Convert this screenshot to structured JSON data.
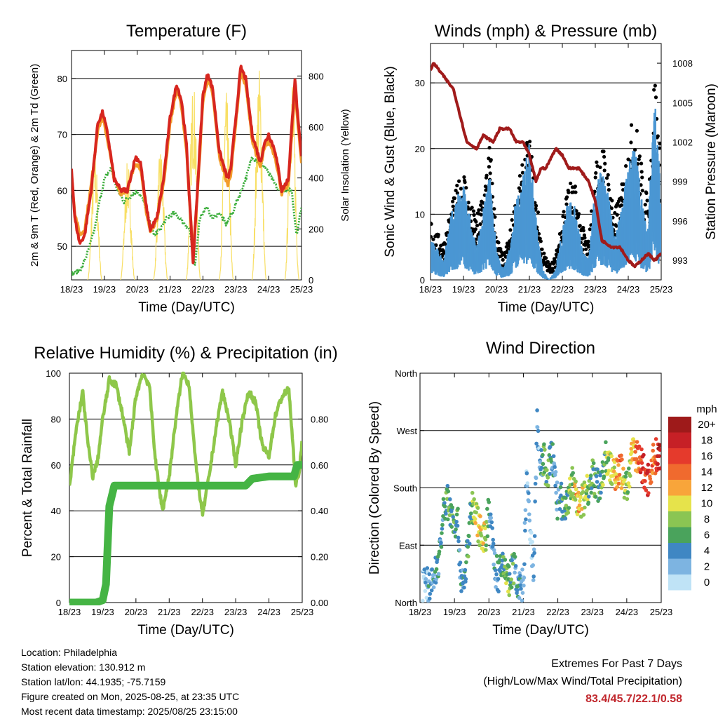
{
  "colors": {
    "t2m": "#d7261f",
    "t9m": "#f39c2a",
    "td": "#3cae3c",
    "solar": "#f8df65",
    "wind": "#4b97d3",
    "gust": "#000000",
    "pressure": "#a01b1b",
    "rh": "#8ec74a",
    "precip": "#45b444"
  },
  "chart_data": [
    {
      "id": "temperature",
      "type": "line",
      "title": "Temperature (F)",
      "xlabel": "Time (Day/UTC)",
      "ylabel": "2m & 9m T (Red, Orange) & 2m Td (Green)",
      "ylabel_right": "Solar Insolation (Yellow)",
      "xticks": [
        "18/23",
        "19/23",
        "20/23",
        "21/23",
        "22/23",
        "23/23",
        "24/23",
        "25/23"
      ],
      "xlim": [
        0,
        7
      ],
      "ylim": [
        44,
        85
      ],
      "ylim_right": [
        0,
        900
      ],
      "yticks": [
        50,
        60,
        70,
        80
      ],
      "yticks_right": [
        0,
        200,
        400,
        600,
        800
      ],
      "series": [
        {
          "key": "t2m",
          "x": [
            0,
            0.1,
            0.25,
            0.4,
            0.6,
            0.8,
            0.95,
            1.1,
            1.3,
            1.5,
            1.7,
            1.95,
            2.1,
            2.25,
            2.4,
            2.6,
            2.8,
            3.0,
            3.2,
            3.35,
            3.5,
            3.7,
            3.85,
            4.0,
            4.15,
            4.3,
            4.5,
            4.75,
            4.85,
            5.0,
            5.15,
            5.3,
            5.5,
            5.75,
            5.85,
            6.0,
            6.2,
            6.4,
            6.6,
            6.8,
            6.9,
            7.0
          ],
          "y": [
            64,
            55,
            50.5,
            52,
            60,
            72,
            74,
            70,
            62,
            60,
            60,
            66,
            65,
            58,
            53,
            55,
            62,
            73,
            79,
            76,
            68,
            47,
            62,
            77,
            81,
            78,
            67,
            62,
            64,
            73,
            82,
            80,
            70,
            65,
            68,
            70,
            67,
            60,
            62,
            80,
            72,
            66
          ]
        },
        {
          "key": "t9m",
          "x": [
            0,
            0.1,
            0.25,
            0.4,
            0.6,
            0.8,
            0.95,
            1.1,
            1.3,
            1.5,
            1.7,
            1.95,
            2.1,
            2.25,
            2.4,
            2.6,
            2.8,
            3.0,
            3.2,
            3.35,
            3.5,
            3.7,
            3.85,
            4.0,
            4.15,
            4.3,
            4.5,
            4.75,
            4.85,
            5.0,
            5.15,
            5.3,
            5.5,
            5.75,
            5.85,
            6.0,
            6.2,
            6.4,
            6.6,
            6.8,
            6.9,
            7.0
          ],
          "y": [
            63,
            56,
            52,
            53,
            61,
            71,
            73,
            69,
            62,
            59.5,
            60,
            65,
            64,
            57,
            52.5,
            55,
            61,
            72,
            78,
            75,
            67,
            48,
            61,
            76,
            80,
            77,
            66,
            61,
            63,
            72,
            81,
            79,
            69,
            64,
            67,
            69,
            66,
            59.5,
            61,
            78,
            71,
            65
          ]
        },
        {
          "key": "td",
          "x": [
            0,
            0.15,
            0.3,
            0.5,
            0.7,
            0.85,
            1.0,
            1.2,
            1.4,
            1.6,
            1.8,
            2.0,
            2.2,
            2.35,
            2.5,
            2.7,
            2.9,
            3.1,
            3.3,
            3.45,
            3.6,
            3.75,
            3.9,
            4.1,
            4.3,
            4.5,
            4.7,
            4.9,
            5.1,
            5.3,
            5.5,
            5.7,
            5.9,
            6.1,
            6.3,
            6.5,
            6.7,
            6.85,
            7.0
          ],
          "y": [
            45,
            45.5,
            46,
            49,
            53,
            58,
            62,
            64,
            60,
            58,
            59,
            60,
            58,
            55,
            52,
            53,
            55,
            56,
            55,
            54,
            53,
            46,
            55,
            57,
            55,
            56,
            54,
            56,
            59,
            62,
            66,
            65,
            64,
            62,
            60,
            60,
            60,
            52,
            57
          ]
        },
        {
          "key": "solar",
          "type": "diurnal",
          "peaks_x": [
            0.71,
            1.71,
            2.71,
            3.71,
            4.71,
            5.71,
            6.71
          ],
          "peaks": [
            510,
            470,
            520,
            790,
            740,
            840,
            830
          ],
          "half_width": 0.22,
          "baseline": 0
        }
      ]
    },
    {
      "id": "winds",
      "type": "scatter",
      "title": "Winds (mph) & Pressure (mb)",
      "xlabel": "Time (Day/UTC)",
      "ylabel": "Sonic Wind & Gust (Blue, Black)",
      "ylabel_right": "Station Pressure (Maroon)",
      "xticks": [
        "18/23",
        "19/23",
        "20/23",
        "21/23",
        "22/23",
        "23/23",
        "24/23",
        "25/23"
      ],
      "xlim": [
        0,
        7
      ],
      "ylim": [
        0,
        36
      ],
      "ylim_right": [
        991.5,
        1009.5
      ],
      "yticks": [
        0,
        10,
        20,
        30
      ],
      "yticks_right": [
        993,
        996,
        999,
        1002,
        1005,
        1008
      ],
      "series": [
        {
          "key": "wind",
          "x": [
            0,
            0.2,
            0.4,
            0.6,
            0.8,
            1.0,
            1.2,
            1.4,
            1.6,
            1.8,
            2.0,
            2.2,
            2.4,
            2.6,
            2.8,
            3.0,
            3.2,
            3.4,
            3.6,
            3.8,
            4.0,
            4.2,
            4.4,
            4.6,
            4.8,
            5.0,
            5.2,
            5.4,
            5.6,
            5.8,
            6.0,
            6.2,
            6.4,
            6.6,
            6.8,
            7.0
          ],
          "y": [
            4,
            3,
            2,
            6,
            8,
            9,
            6,
            3,
            7,
            10,
            3,
            1,
            3,
            8,
            10,
            13,
            6,
            1,
            0,
            1,
            5,
            8,
            7,
            3,
            2,
            9,
            11,
            8,
            4,
            7,
            11,
            13,
            8,
            5,
            18,
            8
          ]
        },
        {
          "key": "gust",
          "x": [
            0,
            0.2,
            0.4,
            0.6,
            0.8,
            1.0,
            1.2,
            1.4,
            1.6,
            1.8,
            2.0,
            2.2,
            2.4,
            2.6,
            2.8,
            3.0,
            3.2,
            3.4,
            3.6,
            3.8,
            4.0,
            4.2,
            4.4,
            4.6,
            4.8,
            5.0,
            5.2,
            5.4,
            5.6,
            5.8,
            6.0,
            6.2,
            6.4,
            6.6,
            6.8,
            7.0
          ],
          "y": [
            8,
            6,
            5,
            9,
            12,
            15,
            10,
            8,
            12,
            18,
            6,
            3,
            6,
            11,
            15,
            19,
            11,
            4,
            2,
            3,
            9,
            13,
            12,
            7,
            5,
            15,
            18,
            14,
            9,
            12,
            18,
            22,
            15,
            10,
            28,
            15
          ]
        },
        {
          "key": "pressure",
          "type": "line",
          "x": [
            0,
            0.1,
            0.4,
            0.7,
            0.9,
            1.1,
            1.4,
            1.6,
            1.9,
            2.1,
            2.4,
            2.6,
            2.8,
            3.0,
            3.2,
            3.35,
            3.5,
            3.8,
            4.0,
            4.2,
            4.5,
            4.8,
            5.0,
            5.2,
            5.5,
            5.75,
            6.0,
            6.2,
            6.4,
            6.6,
            6.8,
            7.0
          ],
          "y": [
            1007.5,
            1008,
            1007,
            1006,
            1004,
            1002,
            1001.5,
            1002.5,
            1002,
            1003,
            1003,
            1002,
            1002,
            1001,
            999,
            1000,
            1000,
            1001.5,
            1001,
            1000,
            1000,
            999,
            997.5,
            994.5,
            994,
            994,
            993,
            992.5,
            993,
            993.5,
            993,
            993.5
          ]
        }
      ]
    },
    {
      "id": "humidity",
      "type": "line",
      "title": "Relative Humidity (%) & Precipitation (in)",
      "xlabel": "Time (Day/UTC)",
      "ylabel": "Percent & Total Rainfall",
      "xticks": [
        "18/23",
        "19/23",
        "20/23",
        "21/23",
        "22/23",
        "23/23",
        "24/23",
        "25/23"
      ],
      "xlim": [
        0,
        7
      ],
      "ylim": [
        0,
        100
      ],
      "ylim_right": [
        0,
        1.0
      ],
      "yticks": [
        0,
        20,
        40,
        60,
        80,
        100
      ],
      "yticks_right": [
        "0.00",
        "0.20",
        "0.40",
        "0.60",
        "0.80"
      ],
      "series": [
        {
          "key": "rh",
          "x": [
            0,
            0.2,
            0.4,
            0.55,
            0.7,
            0.85,
            1.0,
            1.2,
            1.4,
            1.6,
            1.8,
            2.0,
            2.2,
            2.4,
            2.6,
            2.8,
            3.0,
            3.2,
            3.4,
            3.6,
            3.8,
            4.0,
            4.2,
            4.4,
            4.6,
            4.8,
            5.0,
            5.2,
            5.4,
            5.6,
            5.8,
            6.0,
            6.2,
            6.4,
            6.6,
            6.8,
            6.9,
            7.0
          ],
          "y": [
            50,
            75,
            92,
            70,
            55,
            62,
            80,
            97,
            95,
            82,
            65,
            90,
            100,
            95,
            60,
            40,
            55,
            80,
            100,
            95,
            60,
            38,
            55,
            75,
            92,
            80,
            60,
            80,
            92,
            87,
            68,
            64,
            82,
            90,
            93,
            52,
            55,
            72
          ]
        },
        {
          "key": "precip",
          "type": "step",
          "x": [
            0,
            0.8,
            1.0,
            1.1,
            1.15,
            1.2,
            1.35,
            2.0,
            3.0,
            4.0,
            5.0,
            5.3,
            5.5,
            6.0,
            6.5,
            6.75,
            6.85,
            7.0
          ],
          "y": [
            0,
            0,
            0.01,
            0.08,
            0.25,
            0.42,
            0.51,
            0.51,
            0.51,
            0.51,
            0.51,
            0.51,
            0.54,
            0.55,
            0.55,
            0.55,
            0.6,
            0.6
          ]
        }
      ]
    },
    {
      "id": "direction",
      "type": "scatter",
      "title": "Wind Direction",
      "xlabel": "Time (Day/UTC)",
      "ylabel": "Direction (Colored By Speed)",
      "xticks": [
        "18/23",
        "19/23",
        "20/23",
        "21/23",
        "22/23",
        "23/23",
        "24/23",
        "25/23"
      ],
      "xlim": [
        0,
        7
      ],
      "ylim": [
        0,
        360
      ],
      "ytick_labels": [
        "North",
        "East",
        "South",
        "West",
        "North"
      ],
      "legend": {
        "title": "mph",
        "placement": "right",
        "labels": [
          "20+",
          "18",
          "16",
          "14",
          "12",
          "10",
          "8",
          "6",
          "4",
          "2",
          "0"
        ],
        "colors": [
          "#9e1a1a",
          "#c62026",
          "#e53a2c",
          "#f06a2e",
          "#f8a53a",
          "#e6e34b",
          "#8bc553",
          "#4aa35c",
          "#3f87c3",
          "#7db4e1",
          "#bfe3f6"
        ]
      },
      "series": [
        {
          "key": "dir_speed",
          "x": [
            0.1,
            0.2,
            0.3,
            0.4,
            0.5,
            0.6,
            0.7,
            0.8,
            0.9,
            1.0,
            1.1,
            1.2,
            1.3,
            1.5,
            1.6,
            1.7,
            1.8,
            1.9,
            2.0,
            2.1,
            2.2,
            2.3,
            2.4,
            2.5,
            2.6,
            2.7,
            2.8,
            2.9,
            3.0,
            3.1,
            3.2,
            3.3,
            3.4,
            3.5,
            3.6,
            3.7,
            3.8,
            3.9,
            4.0,
            4.1,
            4.2,
            4.4,
            4.6,
            4.8,
            5.0,
            5.2,
            5.4,
            5.6,
            5.8,
            6.0,
            6.2,
            6.4,
            6.6,
            6.8,
            6.9
          ],
          "dir": [
            25,
            35,
            20,
            40,
            55,
            90,
            150,
            160,
            140,
            130,
            120,
            30,
            40,
            150,
            140,
            120,
            110,
            100,
            150,
            90,
            50,
            40,
            60,
            50,
            30,
            60,
            40,
            20,
            30,
            200,
            100,
            50,
            280,
            210,
            230,
            180,
            240,
            210,
            150,
            160,
            140,
            190,
            150,
            170,
            200,
            180,
            230,
            200,
            210,
            180,
            240,
            220,
            190,
            230,
            230
          ],
          "speed": [
            2,
            3,
            3,
            4,
            4,
            5,
            5,
            6,
            7,
            6,
            5,
            4,
            4,
            6,
            9,
            10,
            11,
            9,
            4,
            3,
            4,
            5,
            6,
            7,
            7,
            6,
            3,
            3,
            2,
            2,
            1,
            2,
            2,
            3,
            6,
            7,
            5,
            3,
            3,
            5,
            6,
            8,
            12,
            8,
            6,
            5,
            8,
            10,
            14,
            7,
            12,
            16,
            16,
            12,
            18
          ]
        }
      ]
    }
  ],
  "info": {
    "location": "Location: Philadelphia",
    "elevation": "Station elevation: 130.912 m",
    "latlon": "Station lat/lon: 44.1935; -75.7159",
    "created": "Figure created on Mon, 2025-08-25, at 23:35 UTC",
    "recent": "Most recent data timestamp: 2025/08/25 23:15:00"
  },
  "extremes": {
    "line1": "Extremes For Past 7 Days",
    "line2": "(High/Low/Max Wind/Total Precipitation)",
    "values": "83.4/45.7/22.1/0.58"
  }
}
